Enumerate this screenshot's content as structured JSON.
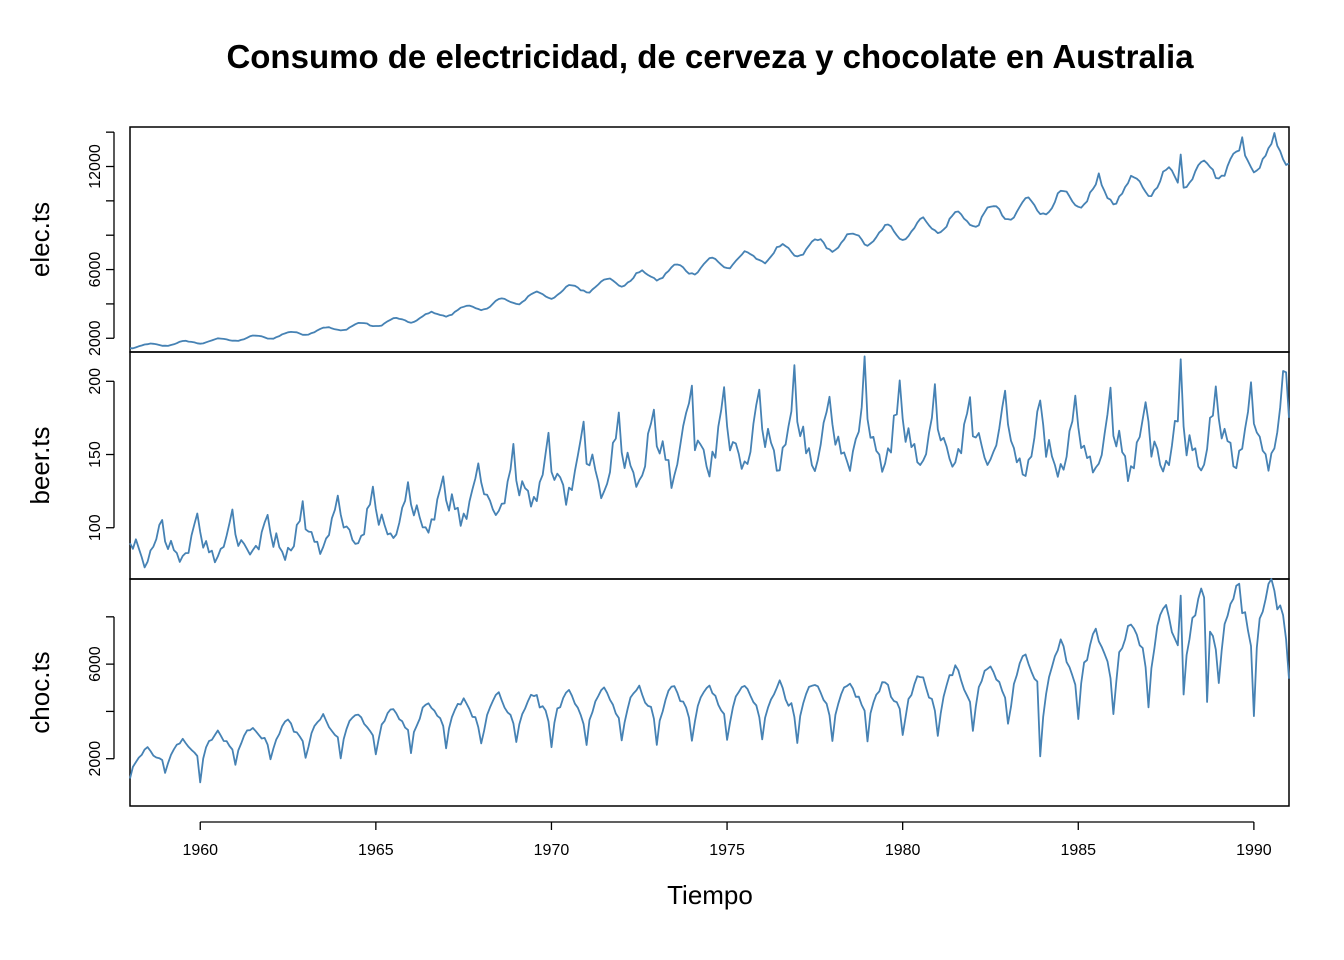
{
  "chart_data": {
    "type": "line",
    "title": "Consumo de electricidad, de cerveza y chocolate en Australia",
    "xlabel": "Tiempo",
    "xlim": [
      1958,
      1991
    ],
    "x_ticks": [
      1960,
      1965,
      1970,
      1975,
      1980,
      1985,
      1990
    ],
    "line_color": "#4682B4",
    "frequency": "monthly",
    "start": 1958,
    "panels": [
      {
        "name": "elec.ts",
        "ylabel": "elec.ts",
        "ylim": [
          1200,
          14300
        ],
        "y_ticks": [
          2000,
          4000,
          6000,
          8000,
          10000,
          12000,
          14000
        ],
        "y_tick_labels": [
          "2000",
          "",
          "6000",
          "",
          "",
          "12000",
          ""
        ],
        "trend_knots": [
          [
            1958,
            1500
          ],
          [
            1962,
            2100
          ],
          [
            1966,
            3100
          ],
          [
            1970,
            4600
          ],
          [
            1974,
            6100
          ],
          [
            1978,
            7500
          ],
          [
            1982,
            9000
          ],
          [
            1986,
            10500
          ],
          [
            1988,
            11400
          ],
          [
            1989.5,
            12300
          ],
          [
            1991,
            12800
          ]
        ],
        "seasonal_amplitude": 0.06,
        "peaks": [
          [
            1990.6,
            13950
          ],
          [
            1989.7,
            13700
          ],
          [
            1987.9,
            12700
          ],
          [
            1985.6,
            11600
          ]
        ]
      },
      {
        "name": "beer.ts",
        "ylabel": "beer.ts",
        "ylim": [
          65,
          220
        ],
        "y_ticks": [
          100,
          150,
          200
        ],
        "y_tick_labels": [
          "100",
          "150",
          "200"
        ],
        "trend_knots": [
          [
            1958,
            88
          ],
          [
            1962,
            92
          ],
          [
            1965,
            105
          ],
          [
            1968,
            122
          ],
          [
            1971,
            142
          ],
          [
            1974,
            158
          ],
          [
            1977,
            162
          ],
          [
            1980,
            163
          ],
          [
            1984,
            158
          ],
          [
            1988,
            160
          ],
          [
            1991,
            170
          ]
        ],
        "seasonal_amplitude": 0.2,
        "peaks": [
          [
            1978.9,
            217
          ],
          [
            1987.9,
            215
          ],
          [
            1990.8,
            207
          ],
          [
            1976.9,
            211
          ],
          [
            1974.0,
            197
          ]
        ]
      },
      {
        "name": "choc.ts",
        "ylabel": "choc.ts",
        "ylim": [
          0,
          9600
        ],
        "y_ticks": [
          2000,
          4000,
          6000,
          8000
        ],
        "y_tick_labels": [
          "2000",
          "",
          "6000",
          ""
        ],
        "trend_knots": [
          [
            1958,
            1800
          ],
          [
            1961,
            2600
          ],
          [
            1964,
            3100
          ],
          [
            1968,
            3700
          ],
          [
            1972,
            4000
          ],
          [
            1976,
            4100
          ],
          [
            1980,
            4300
          ],
          [
            1983,
            4900
          ],
          [
            1986,
            6000
          ],
          [
            1988,
            7000
          ],
          [
            1991,
            7800
          ]
        ],
        "seasonal_amplitude": 0.32,
        "troughs": [
          [
            1960.0,
            1000
          ],
          [
            1983.9,
            2100
          ],
          [
            1990.0,
            3800
          ],
          [
            1988.7,
            4400
          ]
        ],
        "peaks": [
          [
            1989.6,
            9400
          ],
          [
            1990.6,
            9100
          ],
          [
            1987.9,
            8900
          ]
        ]
      }
    ]
  }
}
